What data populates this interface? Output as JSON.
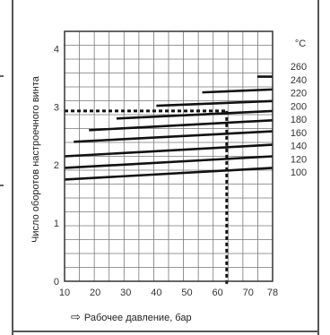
{
  "chart_data": {
    "type": "line",
    "xlabel": "Рабочее давление, бар",
    "ylabel": "Число оборотов настроечного винта",
    "legend_title": "°C",
    "x_ticks": [
      10,
      20,
      30,
      40,
      50,
      60,
      70,
      78
    ],
    "y_ticks": [
      0,
      1,
      2,
      3,
      4
    ],
    "xlim": [
      10,
      78
    ],
    "ylim": [
      0,
      4.3
    ],
    "grid": true,
    "series": [
      {
        "name": "100",
        "x": [
          10,
          78
        ],
        "y": [
          1.75,
          1.95
        ]
      },
      {
        "name": "120",
        "x": [
          10,
          78
        ],
        "y": [
          1.95,
          2.15
        ]
      },
      {
        "name": "140",
        "x": [
          10,
          78
        ],
        "y": [
          2.15,
          2.35
        ]
      },
      {
        "name": "160",
        "x": [
          13,
          78
        ],
        "y": [
          2.4,
          2.58
        ]
      },
      {
        "name": "180",
        "x": [
          18,
          78
        ],
        "y": [
          2.6,
          2.77
        ]
      },
      {
        "name": "200",
        "x": [
          27,
          78
        ],
        "y": [
          2.8,
          2.93
        ]
      },
      {
        "name": "220",
        "x": [
          40,
          78
        ],
        "y": [
          3.02,
          3.1
        ]
      },
      {
        "name": "240",
        "x": [
          55,
          78
        ],
        "y": [
          3.25,
          3.3
        ]
      },
      {
        "name": "260",
        "x": [
          73,
          78
        ],
        "y": [
          3.52,
          3.52
        ]
      }
    ],
    "reference_point": {
      "x": 63,
      "y": 2.93
    }
  }
}
